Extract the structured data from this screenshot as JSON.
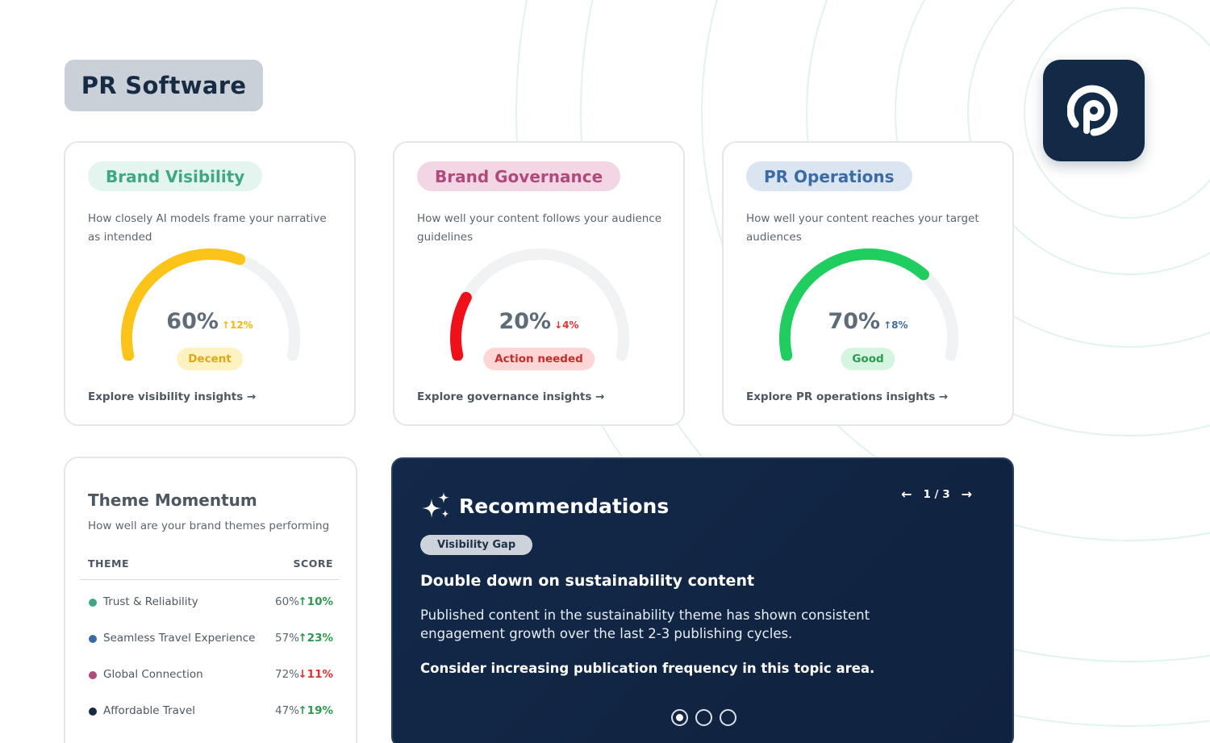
{
  "page": {
    "title": "PR Software"
  },
  "cards": [
    {
      "title": "Brand Visibility",
      "title_color": "#3fa882",
      "pill_bg": "#e4f4ee",
      "description": "How closely AI models frame your narrative as intended",
      "score": "60%",
      "score_value": 60,
      "delta": "↑12%",
      "delta_color": "#f2b705",
      "gauge_color": "#fcc419",
      "status": "Decent",
      "status_color": "#e0a80a",
      "status_bg": "#fff2c2",
      "link": "Explore visibility insights →"
    },
    {
      "title": "Brand Governance",
      "title_color": "#b04a7c",
      "pill_bg": "#f3d6e4",
      "description": "How well your content follows your audience guidelines",
      "score": "20%",
      "score_value": 20,
      "delta": "↓4%",
      "delta_color": "#e03131",
      "gauge_color": "#f0101a",
      "status": "Action needed",
      "status_color": "#c92a2a",
      "status_bg": "#ffd6d6",
      "link": "Explore governance insights →"
    },
    {
      "title": "PR Operations",
      "title_color": "#3b6ba5",
      "pill_bg": "#dbe5f1",
      "description": "How well your content reaches your target audiences",
      "score": "70%",
      "score_value": 70,
      "delta": "↑8%",
      "delta_color": "#3b6ba5",
      "gauge_color": "#1fce5f",
      "status": "Good",
      "status_color": "#2b9a4f",
      "status_bg": "#d6f5e0",
      "link": "Explore PR operations insights →"
    }
  ],
  "theme_momentum": {
    "title": "Theme Momentum",
    "subtitle": "How well are your brand themes performing",
    "col_theme": "THEME",
    "col_score": "SCORE",
    "rows": [
      {
        "name": "Trust & Reliability",
        "score": "60%",
        "delta": "↑10%",
        "dot_color": "#3fa882",
        "delta_color": "#2b9a4f"
      },
      {
        "name": "Seamless Travel Experience",
        "score": "57%",
        "delta": "↑23%",
        "dot_color": "#3b6ba5",
        "delta_color": "#2b9a4f"
      },
      {
        "name": "Global Connection",
        "score": "72%",
        "delta": "↓11%",
        "dot_color": "#b04a7c",
        "delta_color": "#e03131"
      },
      {
        "name": "Affordable Travel",
        "score": "47%",
        "delta": "↑19%",
        "dot_color": "#182b45",
        "delta_color": "#2b9a4f"
      }
    ]
  },
  "recommendations": {
    "title": "Recommendations",
    "pager": "1 / 3",
    "prev_icon": "←",
    "next_icon": "→",
    "tag": "Visibility Gap",
    "headline": "Double down on sustainability content",
    "body": "Published content in the sustainability theme has shown consistent engagement growth over the last 2-3 publishing cycles.",
    "cta": "Consider increasing publication frequency in this topic area."
  }
}
